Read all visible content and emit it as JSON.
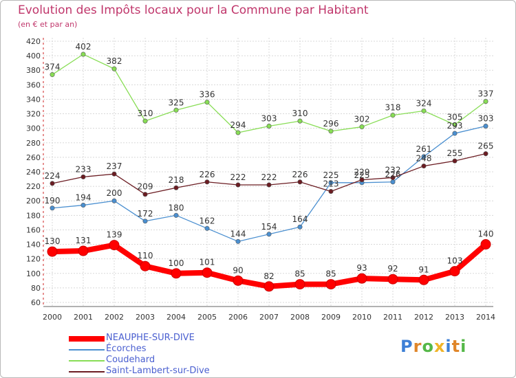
{
  "title": "Evolution des Impôts locaux pour la Commune par Habitant",
  "subtitle": "(en € et par an)",
  "logo": {
    "text": "Proxiti",
    "colors": [
      "#3d7fd6",
      "#e0862a",
      "#55b848",
      "#f0b428"
    ]
  },
  "chart_data": {
    "type": "line",
    "categories": [
      "2000",
      "2001",
      "2002",
      "2003",
      "2004",
      "2005",
      "2006",
      "2007",
      "2008",
      "2009",
      "2010",
      "2011",
      "2012",
      "2013",
      "2014"
    ],
    "ylim": [
      60,
      420
    ],
    "yticks": [
      60,
      80,
      100,
      120,
      140,
      160,
      180,
      200,
      220,
      240,
      260,
      280,
      300,
      320,
      340,
      360,
      380,
      400,
      420
    ],
    "grid": true,
    "legend_position": "bottom-left",
    "series": [
      {
        "name": "NEAUPHE-SUR-DIVE",
        "color": "#ff0000",
        "highlight": true,
        "values": [
          130,
          131,
          139,
          110,
          100,
          101,
          90,
          82,
          85,
          85,
          93,
          92,
          91,
          103,
          140
        ]
      },
      {
        "name": "Écorches",
        "color": "#4a8fd0",
        "values": [
          190,
          194,
          200,
          172,
          180,
          162,
          144,
          154,
          164,
          225,
          225,
          226,
          261,
          293,
          303
        ],
        "labels": [
          "190",
          "194",
          "200",
          "172",
          "180",
          "162",
          "144",
          "154",
          "164",
          "225",
          "225",
          "226",
          "261",
          "293",
          "303"
        ]
      },
      {
        "name": "Coudehard",
        "color": "#88dd55",
        "values": [
          374,
          402,
          382,
          310,
          325,
          336,
          294,
          303,
          310,
          296,
          302,
          318,
          324,
          305,
          337
        ]
      },
      {
        "name": "Saint-Lambert-sur-Dive",
        "color": "#6b1c22",
        "values": [
          224,
          233,
          237,
          209,
          218,
          226,
          222,
          222,
          226,
          213,
          229,
          232,
          248,
          255,
          265
        ],
        "labels": [
          "224",
          "233",
          "237",
          "209",
          "218",
          "226",
          "222",
          "222",
          "226",
          "213",
          "229",
          "232",
          "248",
          "255",
          "265"
        ]
      }
    ]
  }
}
